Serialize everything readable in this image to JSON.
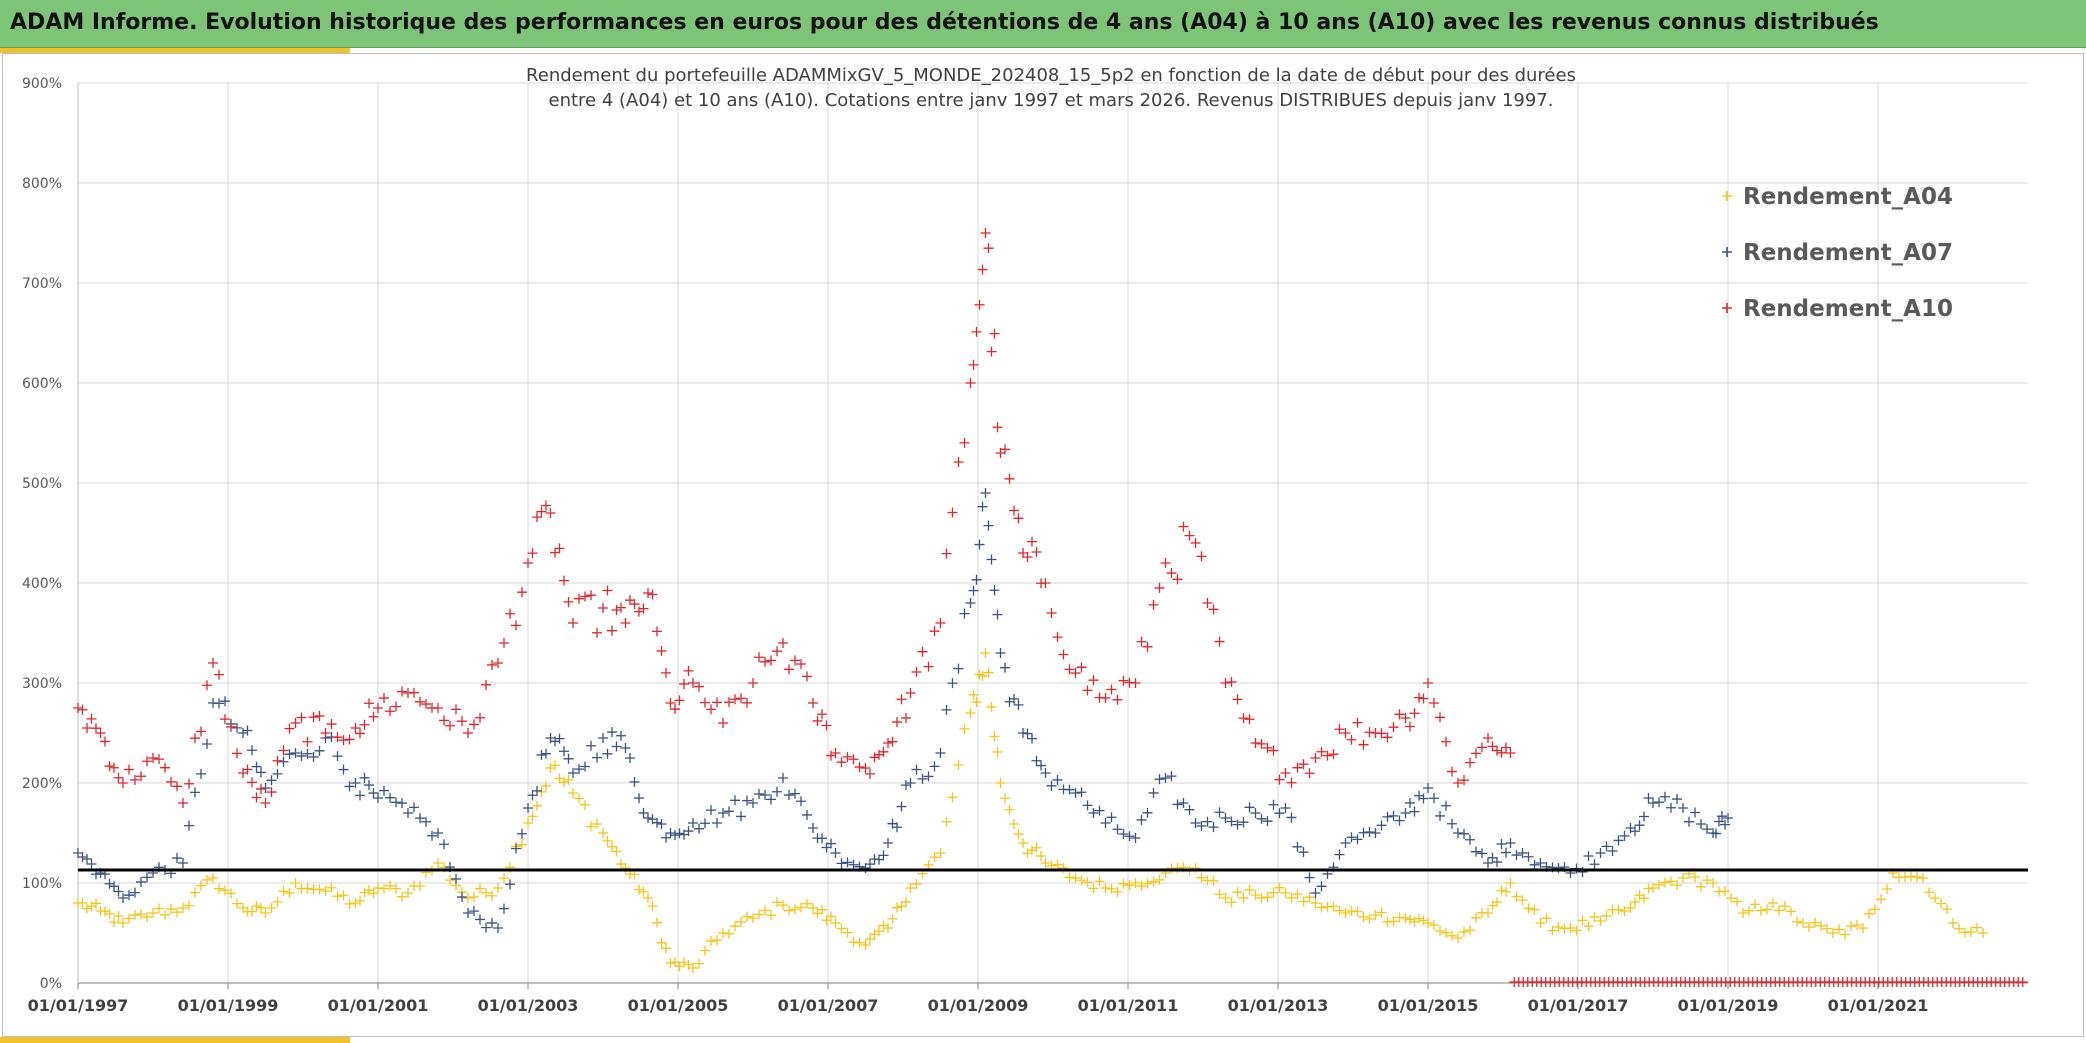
{
  "banner": {
    "title": "ADAM Informe. Evolution historique des performances en euros pour des détentions de 4 ans (A04) à 10 ans (A10) avec les revenus connus distribués"
  },
  "colors": {
    "banner_bg": "#7cc576",
    "accent": "#f2c12e",
    "series_a04": "#f5c518",
    "series_a07": "#3b5282",
    "series_a10": "#e0262d",
    "reference_line": "#000000",
    "grid": "#d9d9d9"
  },
  "chart_data": {
    "type": "scatter",
    "title_line1": "Rendement du portefeuille ADAMMixGV_5_MONDE_202408_15_5p2  en fonction de la date de début pour des durées",
    "title_line2": "entre 4 (A04) et 10 ans (A10). Cotations entre janv 1997 et mars 2026. Revenus DISTRIBUES depuis janv 1997.",
    "xlabel": "",
    "ylabel": "",
    "xlim": [
      1997.0,
      2023.0
    ],
    "ylim": [
      0,
      900
    ],
    "y_ticks": [
      0,
      100,
      200,
      300,
      400,
      500,
      600,
      700,
      800,
      900
    ],
    "y_tick_labels": [
      "0%",
      "100%",
      "200%",
      "300%",
      "400%",
      "500%",
      "600%",
      "700%",
      "800%",
      "900%"
    ],
    "x_tick_years": [
      1997,
      1999,
      2001,
      2003,
      2005,
      2007,
      2009,
      2011,
      2013,
      2015,
      2017,
      2019,
      2021
    ],
    "x_tick_labels": [
      "01/01/1997",
      "01/01/1999",
      "01/01/2001",
      "01/01/2003",
      "01/01/2005",
      "01/01/2007",
      "01/01/2009",
      "01/01/2011",
      "01/01/2013",
      "01/01/2015",
      "01/01/2017",
      "01/01/2019",
      "01/01/2021"
    ],
    "grid": true,
    "marker": "+",
    "legend_position": "top-right",
    "reference_line_y": 113,
    "series": [
      {
        "name": "Rendement_A04",
        "color": "#f5c518",
        "x": [
          1997.0,
          1997.3,
          1997.6,
          1998.0,
          1998.4,
          1998.8,
          1999.2,
          1999.5,
          1999.9,
          2000.3,
          2000.7,
          2001.0,
          2001.4,
          2001.8,
          2002.2,
          2002.6,
          2003.0,
          2003.3,
          2003.6,
          2004.0,
          2004.3,
          2004.6,
          2004.9,
          2005.2,
          2005.6,
          2006.0,
          2006.4,
          2006.8,
          2007.1,
          2007.5,
          2007.8,
          2008.1,
          2008.5,
          2008.9,
          2009.1,
          2009.3,
          2009.6,
          2009.9,
          2010.3,
          2010.7,
          2011.1,
          2011.5,
          2011.9,
          2012.3,
          2012.7,
          2013.1,
          2013.5,
          2013.9,
          2014.3,
          2014.7,
          2015.0,
          2015.4,
          2015.8,
          2016.1,
          2016.5,
          2016.9,
          2017.3,
          2017.7,
          2018.0,
          2018.4,
          2018.8,
          2019.2,
          2019.6,
          2020.0,
          2020.4,
          2020.8,
          2021.2,
          2021.6,
          2022.0,
          2022.4
        ],
        "y": [
          80,
          72,
          60,
          70,
          75,
          105,
          75,
          70,
          100,
          92,
          80,
          95,
          90,
          120,
          85,
          95,
          160,
          215,
          190,
          150,
          115,
          85,
          20,
          15,
          50,
          65,
          78,
          75,
          60,
          38,
          55,
          95,
          130,
          270,
          330,
          200,
          140,
          120,
          105,
          95,
          100,
          110,
          115,
          85,
          88,
          90,
          80,
          70,
          68,
          65,
          60,
          45,
          70,
          100,
          60,
          55,
          62,
          75,
          95,
          105,
          100,
          70,
          80,
          60,
          50,
          55,
          110,
          105,
          60,
          50
        ]
      },
      {
        "name": "Rendement_A07",
        "color": "#3b5282",
        "x": [
          1997.0,
          1997.3,
          1997.6,
          1998.0,
          1998.4,
          1998.8,
          1999.2,
          1999.5,
          1999.9,
          2000.3,
          2000.7,
          2001.0,
          2001.4,
          2001.8,
          2002.2,
          2002.6,
          2003.0,
          2003.3,
          2003.6,
          2004.0,
          2004.3,
          2004.6,
          2004.9,
          2005.2,
          2005.6,
          2006.0,
          2006.4,
          2006.8,
          2007.1,
          2007.5,
          2007.8,
          2008.1,
          2008.5,
          2008.9,
          2009.1,
          2009.3,
          2009.6,
          2009.9,
          2010.3,
          2010.7,
          2011.1,
          2011.5,
          2011.9,
          2012.3,
          2012.7,
          2013.1,
          2013.5,
          2013.9,
          2014.3,
          2014.7,
          2015.0,
          2015.4,
          2015.8,
          2016.1,
          2016.5,
          2016.9,
          2017.3,
          2017.7,
          2018.0,
          2018.4,
          2018.8,
          2019.0
        ],
        "y": [
          130,
          110,
          85,
          110,
          120,
          280,
          250,
          195,
          230,
          245,
          200,
          185,
          170,
          150,
          70,
          55,
          175,
          245,
          210,
          245,
          235,
          165,
          150,
          160,
          170,
          180,
          205,
          155,
          130,
          115,
          140,
          200,
          230,
          380,
          490,
          330,
          250,
          210,
          190,
          160,
          145,
          205,
          160,
          165,
          170,
          175,
          90,
          140,
          150,
          170,
          195,
          150,
          120,
          140,
          120,
          110,
          130,
          155,
          180,
          175,
          150,
          165
        ]
      },
      {
        "name": "Rendement_A10",
        "color": "#e0262d",
        "x": [
          1997.0,
          1997.3,
          1997.6,
          1998.0,
          1998.4,
          1998.8,
          1999.2,
          1999.5,
          1999.9,
          2000.3,
          2000.7,
          2001.0,
          2001.4,
          2001.8,
          2002.2,
          2002.6,
          2003.0,
          2003.3,
          2003.6,
          2004.0,
          2004.3,
          2004.6,
          2004.9,
          2005.2,
          2005.6,
          2006.0,
          2006.4,
          2006.8,
          2007.1,
          2007.5,
          2007.8,
          2008.1,
          2008.5,
          2008.9,
          2009.1,
          2009.3,
          2009.6,
          2009.9,
          2010.3,
          2010.7,
          2011.1,
          2011.5,
          2011.9,
          2012.3,
          2012.7,
          2013.1,
          2013.5,
          2013.9,
          2014.3,
          2014.7,
          2015.0,
          2015.4,
          2015.8,
          2016.1
        ],
        "y": [
          275,
          250,
          200,
          225,
          180,
          320,
          210,
          180,
          260,
          250,
          255,
          275,
          290,
          275,
          250,
          320,
          420,
          470,
          360,
          375,
          360,
          390,
          280,
          300,
          260,
          300,
          340,
          280,
          230,
          215,
          240,
          290,
          360,
          600,
          750,
          530,
          430,
          400,
          310,
          285,
          300,
          420,
          440,
          300,
          240,
          210,
          225,
          250,
          250,
          265,
          300,
          200,
          245,
          230
        ]
      }
    ]
  }
}
